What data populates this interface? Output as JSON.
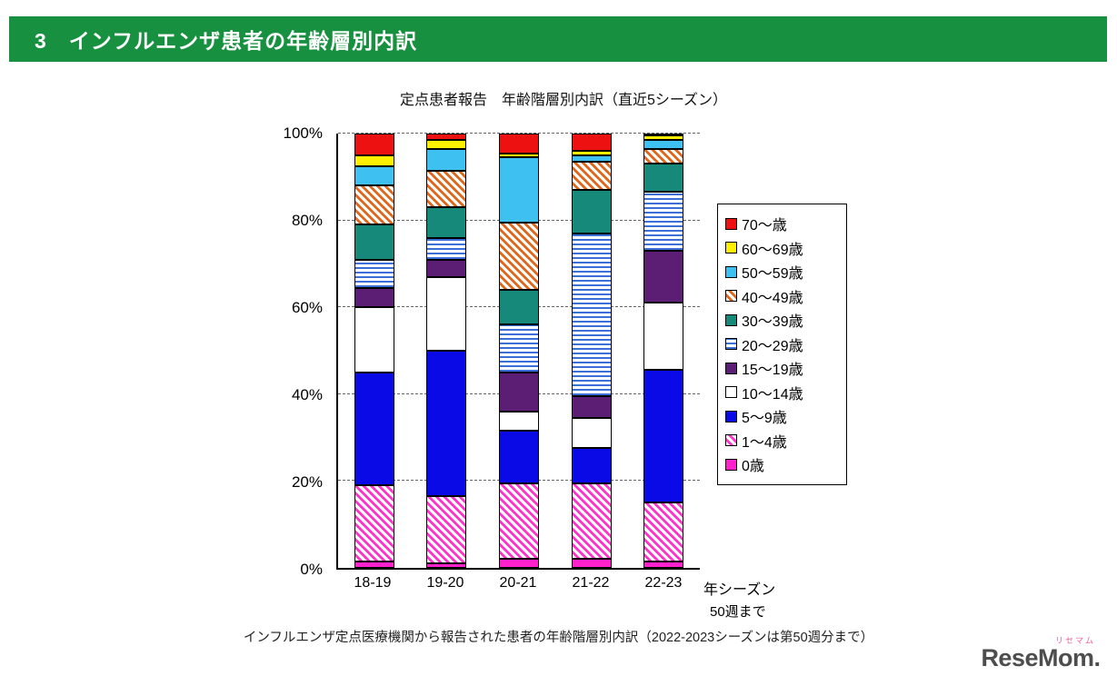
{
  "header": {
    "title": "3　インフルエンザ患者の年齢層別内訳",
    "background": "#17913f",
    "text_color": "#ffffff"
  },
  "chart_title": "定点患者報告　年齢階層別内訳（直近5シーズン）",
  "chart_data": {
    "type": "bar",
    "subtype": "stacked-100-percent",
    "title": "定点患者報告　年齢階層別内訳（直近5シーズン）",
    "categories": [
      "18-19",
      "19-20",
      "20-21",
      "21-22",
      "22-23"
    ],
    "x_unit_label": "年シーズン",
    "x_unit_note": "50週まで",
    "ylim": [
      0,
      100
    ],
    "ytick_values": [
      0,
      20,
      40,
      60,
      80,
      100
    ],
    "ytick_suffix": "%",
    "grid": "dashed-horizontal",
    "legend_position": "right",
    "stack_order": "first-series-on-top",
    "series": [
      {
        "name": "70～歳",
        "fill": {
          "type": "solid",
          "color": "#ee1111",
          "bg": "#ffffff"
        },
        "values": [
          5,
          1.5,
          4.5,
          4,
          0.5
        ]
      },
      {
        "name": "60～69歳",
        "fill": {
          "type": "solid",
          "color": "#ffef00",
          "bg": "#ffffff"
        },
        "values": [
          2.5,
          2,
          1,
          1,
          1
        ]
      },
      {
        "name": "50～59歳",
        "fill": {
          "type": "solid",
          "color": "#3ec1f0",
          "bg": "#ffffff"
        },
        "values": [
          4.5,
          5,
          15,
          1.5,
          2
        ]
      },
      {
        "name": "40～49歳",
        "fill": {
          "type": "diag",
          "color": "#e0661a",
          "bg": "#ffffff"
        },
        "values": [
          9,
          8.5,
          15.5,
          6.5,
          3.5
        ]
      },
      {
        "name": "30～39歳",
        "fill": {
          "type": "solid",
          "color": "#17897a",
          "bg": "#ffffff"
        },
        "values": [
          8,
          7,
          8,
          10,
          6.5
        ]
      },
      {
        "name": "20～29歳",
        "fill": {
          "type": "hlines",
          "color": "#3a6fd8",
          "bg": "#ffffff"
        },
        "values": [
          6.5,
          5,
          11,
          37.5,
          13.5
        ]
      },
      {
        "name": "15～19歳",
        "fill": {
          "type": "solid",
          "color": "#5c1d74",
          "bg": "#ffffff"
        },
        "values": [
          4.5,
          4,
          9,
          5,
          12
        ]
      },
      {
        "name": "10～14歳",
        "fill": {
          "type": "solid",
          "color": "#ffffff",
          "bg": "#ffffff"
        },
        "values": [
          15,
          17,
          4.5,
          7,
          15.5
        ]
      },
      {
        "name": "5～9歳",
        "fill": {
          "type": "solid",
          "color": "#0a0ae6",
          "bg": "#ffffff"
        },
        "values": [
          26,
          33.5,
          12,
          8,
          30.5
        ]
      },
      {
        "name": "1～4歳",
        "fill": {
          "type": "diag",
          "color": "#ff33cc",
          "bg": "#ffffff"
        },
        "values": [
          17.5,
          15.5,
          17.5,
          17.5,
          13.5
        ]
      },
      {
        "name": "0歳",
        "fill": {
          "type": "solid",
          "color": "#ff22cc",
          "bg": "#ffffff"
        },
        "values": [
          1.5,
          1,
          2,
          2,
          1.5
        ]
      }
    ]
  },
  "caption": "インフルエンザ定点医療機関から報告された患者の年齢階層別内訳（2022-2023シーズンは第50週分まで）",
  "logo": {
    "furigana": "リセマム",
    "brand": "ReseMom",
    "period": "."
  }
}
